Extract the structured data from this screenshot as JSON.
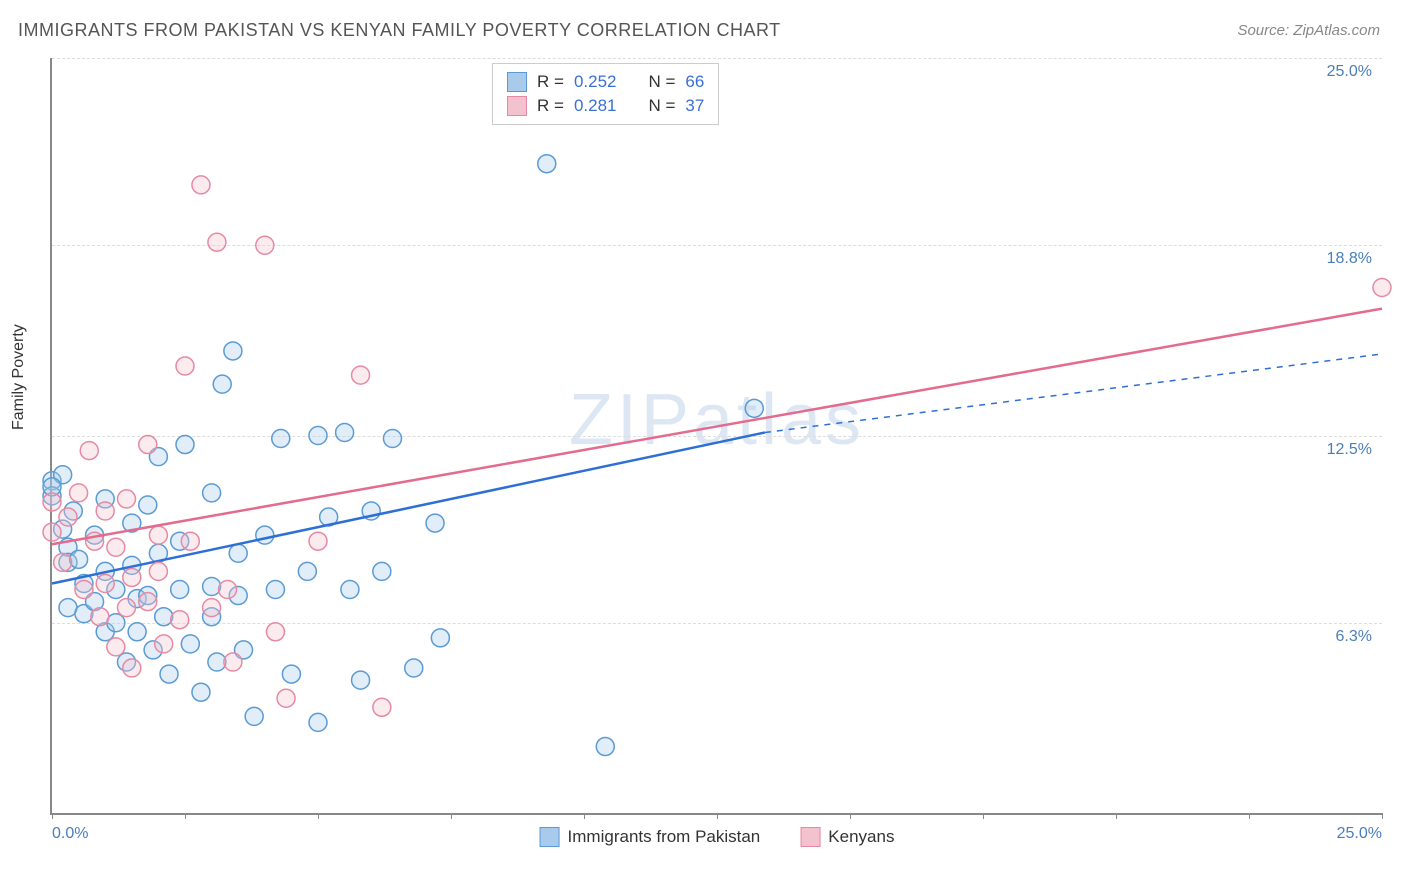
{
  "title": "IMMIGRANTS FROM PAKISTAN VS KENYAN FAMILY POVERTY CORRELATION CHART",
  "source": "Source: ZipAtlas.com",
  "watermark": "ZIPatlas",
  "y_axis_title": "Family Poverty",
  "chart": {
    "type": "scatter",
    "xlim": [
      0,
      25
    ],
    "ylim": [
      0,
      25
    ],
    "x_ticks": [
      0,
      25
    ],
    "x_tick_labels": [
      "0.0%",
      "25.0%"
    ],
    "x_minor_ticks": [
      2.5,
      5.0,
      7.5,
      10.0,
      12.5,
      15.0,
      17.5,
      20.0,
      22.5
    ],
    "y_gridlines": [
      6.3,
      12.5,
      18.8,
      25.0
    ],
    "y_tick_labels": [
      "6.3%",
      "12.5%",
      "18.8%",
      "25.0%"
    ],
    "background_color": "#ffffff",
    "grid_color": "#dddddd",
    "axis_color": "#888888",
    "tick_label_color": "#4a7ebb",
    "marker_radius": 9,
    "marker_stroke_width": 1.5,
    "marker_fill_opacity": 0.35,
    "trend_line_width": 2.5,
    "series": [
      {
        "name": "Immigrants from Pakistan",
        "color_stroke": "#5b9bd5",
        "color_fill": "#a8cbec",
        "trend_color": "#2e6fd6",
        "r": "0.252",
        "n": "66",
        "trend": {
          "x1": 0,
          "y1": 7.6,
          "x2": 13.4,
          "y2": 12.6,
          "dash_after_x": 13.4,
          "x2_dash": 25,
          "y2_dash": 15.2
        },
        "points": [
          [
            0.0,
            11.0
          ],
          [
            0.0,
            10.5
          ],
          [
            0.2,
            11.2
          ],
          [
            0.2,
            9.4
          ],
          [
            0.3,
            8.8
          ],
          [
            0.3,
            8.3
          ],
          [
            0.3,
            6.8
          ],
          [
            0.4,
            10.0
          ],
          [
            0.5,
            8.4
          ],
          [
            0.6,
            7.6
          ],
          [
            0.6,
            6.6
          ],
          [
            0.8,
            9.2
          ],
          [
            0.8,
            7.0
          ],
          [
            1.0,
            10.4
          ],
          [
            1.0,
            8.0
          ],
          [
            1.0,
            6.0
          ],
          [
            1.2,
            7.4
          ],
          [
            1.2,
            6.3
          ],
          [
            1.4,
            5.0
          ],
          [
            1.5,
            9.6
          ],
          [
            1.5,
            8.2
          ],
          [
            1.6,
            7.1
          ],
          [
            1.6,
            6.0
          ],
          [
            1.8,
            10.2
          ],
          [
            1.8,
            7.2
          ],
          [
            1.9,
            5.4
          ],
          [
            2.0,
            11.8
          ],
          [
            2.0,
            8.6
          ],
          [
            2.1,
            6.5
          ],
          [
            2.2,
            4.6
          ],
          [
            2.4,
            9.0
          ],
          [
            2.4,
            7.4
          ],
          [
            2.5,
            12.2
          ],
          [
            2.6,
            5.6
          ],
          [
            2.8,
            4.0
          ],
          [
            3.0,
            10.6
          ],
          [
            3.0,
            7.5
          ],
          [
            3.0,
            6.5
          ],
          [
            3.1,
            5.0
          ],
          [
            3.2,
            14.2
          ],
          [
            3.4,
            15.3
          ],
          [
            3.5,
            8.6
          ],
          [
            3.5,
            7.2
          ],
          [
            3.6,
            5.4
          ],
          [
            3.8,
            3.2
          ],
          [
            4.0,
            9.2
          ],
          [
            4.2,
            7.4
          ],
          [
            4.3,
            12.4
          ],
          [
            4.5,
            4.6
          ],
          [
            4.8,
            8.0
          ],
          [
            5.0,
            12.5
          ],
          [
            5.0,
            3.0
          ],
          [
            5.2,
            9.8
          ],
          [
            5.5,
            12.6
          ],
          [
            5.6,
            7.4
          ],
          [
            5.8,
            4.4
          ],
          [
            6.0,
            10.0
          ],
          [
            6.2,
            8.0
          ],
          [
            6.4,
            12.4
          ],
          [
            6.8,
            4.8
          ],
          [
            7.2,
            9.6
          ],
          [
            7.3,
            5.8
          ],
          [
            9.3,
            21.5
          ],
          [
            10.4,
            2.2
          ],
          [
            13.2,
            13.4
          ],
          [
            0.0,
            10.8
          ]
        ]
      },
      {
        "name": "Kenyans",
        "color_stroke": "#e68aa3",
        "color_fill": "#f4c2cf",
        "trend_color": "#e36b8e",
        "r": "0.281",
        "n": "37",
        "trend": {
          "x1": 0,
          "y1": 8.9,
          "x2": 25,
          "y2": 16.7
        },
        "points": [
          [
            0.0,
            10.3
          ],
          [
            0.0,
            9.3
          ],
          [
            0.2,
            8.3
          ],
          [
            0.3,
            9.8
          ],
          [
            0.5,
            10.6
          ],
          [
            0.6,
            7.4
          ],
          [
            0.7,
            12.0
          ],
          [
            0.8,
            9.0
          ],
          [
            0.9,
            6.5
          ],
          [
            1.0,
            10.0
          ],
          [
            1.0,
            7.6
          ],
          [
            1.2,
            8.8
          ],
          [
            1.2,
            5.5
          ],
          [
            1.4,
            10.4
          ],
          [
            1.4,
            6.8
          ],
          [
            1.5,
            7.8
          ],
          [
            1.5,
            4.8
          ],
          [
            1.8,
            12.2
          ],
          [
            1.8,
            7.0
          ],
          [
            2.0,
            9.2
          ],
          [
            2.0,
            8.0
          ],
          [
            2.1,
            5.6
          ],
          [
            2.4,
            6.4
          ],
          [
            2.5,
            14.8
          ],
          [
            2.6,
            9.0
          ],
          [
            2.8,
            20.8
          ],
          [
            3.0,
            6.8
          ],
          [
            3.1,
            18.9
          ],
          [
            3.3,
            7.4
          ],
          [
            3.4,
            5.0
          ],
          [
            4.0,
            18.8
          ],
          [
            4.2,
            6.0
          ],
          [
            4.4,
            3.8
          ],
          [
            5.0,
            9.0
          ],
          [
            5.8,
            14.5
          ],
          [
            6.2,
            3.5
          ],
          [
            25.0,
            17.4
          ]
        ]
      }
    ]
  },
  "legend": {
    "stats_label_r": "R =",
    "stats_label_n": "N ="
  }
}
